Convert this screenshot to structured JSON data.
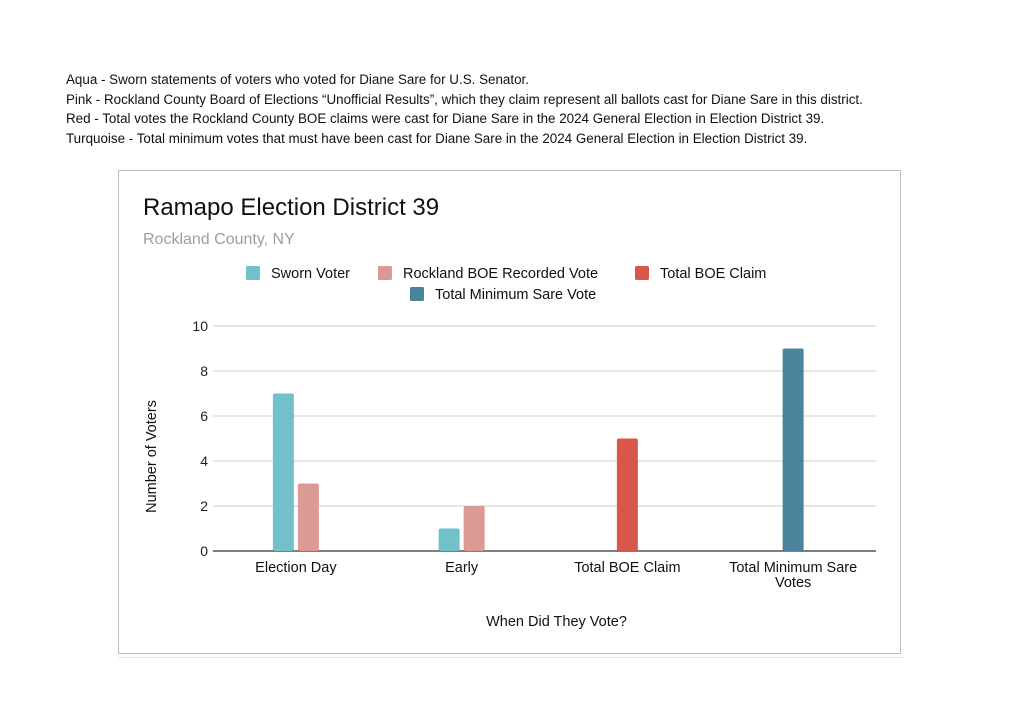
{
  "notes": [
    "Aqua - Sworn statements of voters who voted for Diane Sare for U.S. Senator.",
    "Pink - Rockland County Board of Elections “Unofficial Results”, which they claim represent all ballots cast for Diane Sare in this district.",
    "Red - Total votes the Rockland County BOE claims were cast for Diane Sare in the 2024 General Election in Election District 39.",
    "Turquoise  - Total minimum votes that must have been cast for Diane Sare in the 2024 General Election in Election District 39."
  ],
  "chart_data": {
    "type": "bar",
    "title": "Ramapo Election District 39",
    "subtitle": "Rockland County, NY",
    "xlabel": "When Did They Vote?",
    "ylabel": "Number of Voters",
    "ylim": [
      0,
      10
    ],
    "yticks": [
      0,
      2,
      4,
      6,
      8,
      10
    ],
    "grid": true,
    "legend_position": "top",
    "categories": [
      [
        "Election Day"
      ],
      [
        "Early"
      ],
      [
        "Total BOE Claim"
      ],
      [
        "Total Minimum Sare",
        "Votes"
      ]
    ],
    "series": [
      {
        "name": "Sworn Voter",
        "color": "#72c0c9",
        "values": [
          7,
          1,
          null,
          null
        ]
      },
      {
        "name": "Rockland BOE Recorded Vote",
        "color": "#dc9a94",
        "values": [
          3,
          2,
          null,
          null
        ]
      },
      {
        "name": "Total BOE Claim",
        "color": "#d9574a",
        "values": [
          null,
          null,
          5,
          null
        ]
      },
      {
        "name": "Total Minimum Sare Vote",
        "color": "#4a839b",
        "values": [
          null,
          null,
          null,
          9
        ]
      }
    ]
  }
}
